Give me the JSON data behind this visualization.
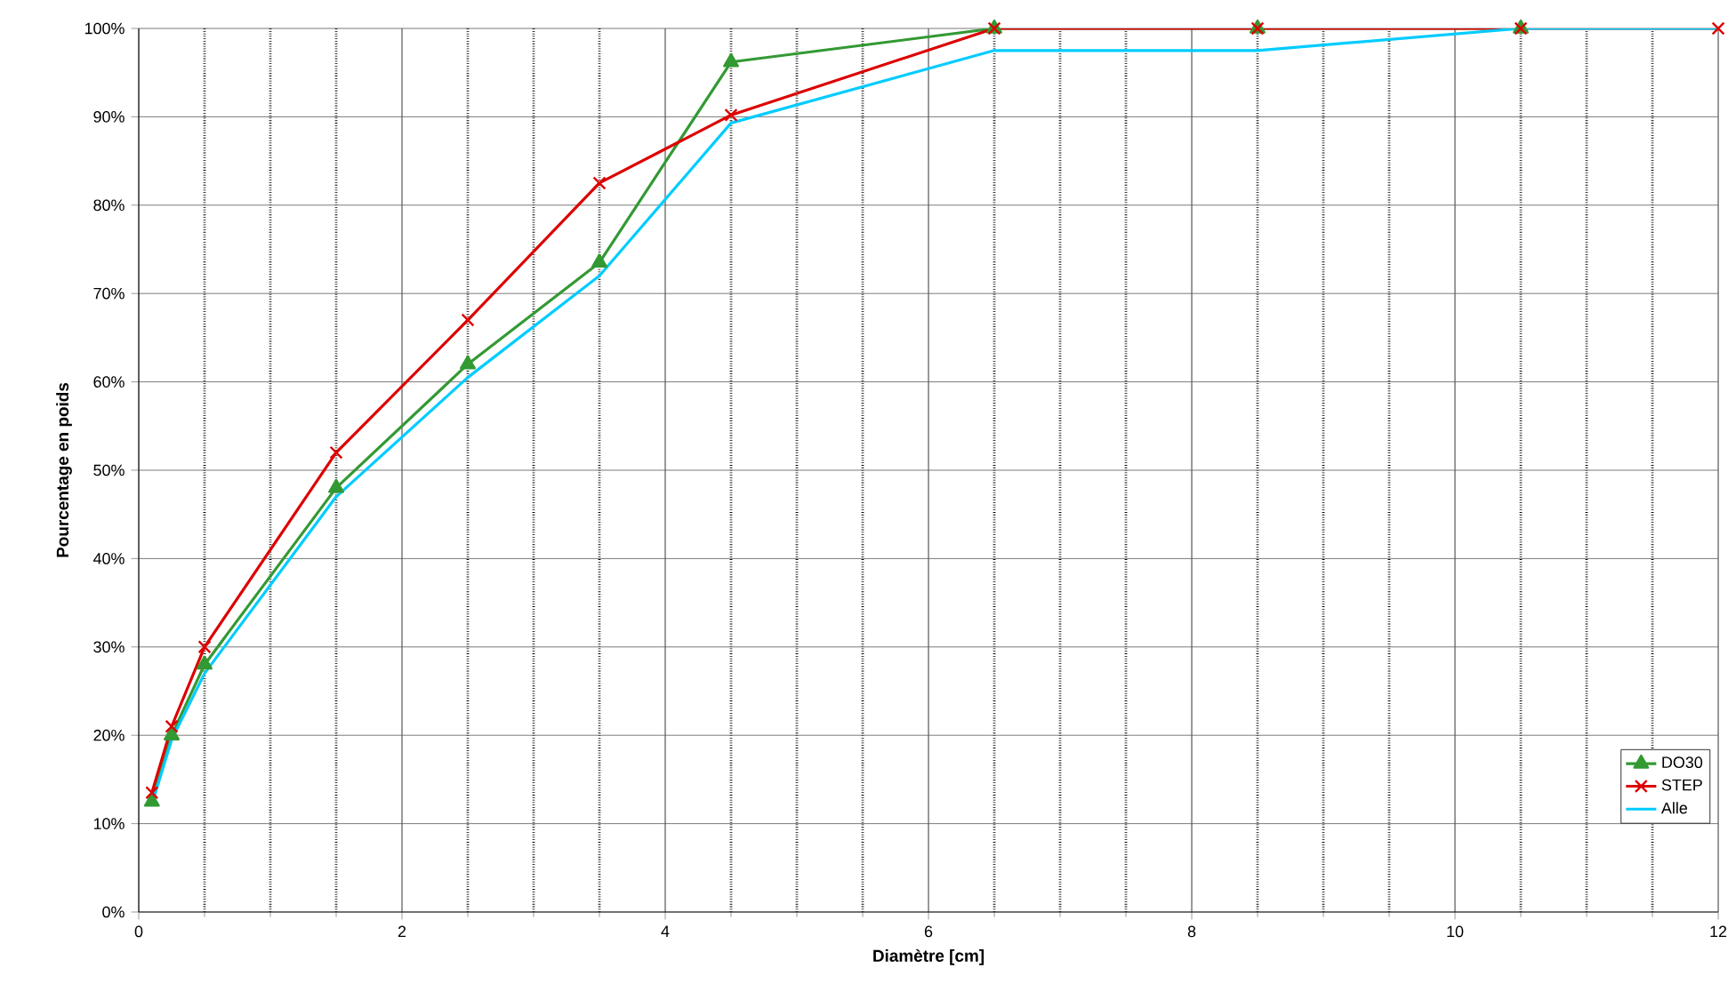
{
  "chart_data": {
    "type": "line",
    "xlabel": "Diamètre [cm]",
    "ylabel": "Pourcentage en poids",
    "series": [
      {
        "name": "DO30",
        "color": "#339933",
        "marker": "triangle",
        "x": [
          0.1,
          0.25,
          0.5,
          1.5,
          2.5,
          3.5,
          4.5,
          6.5,
          8.5,
          10.5
        ],
        "values": [
          12.5,
          20,
          28,
          48,
          62,
          73.5,
          96.2,
          100,
          100,
          100
        ]
      },
      {
        "name": "STEP",
        "color": "#dd0000",
        "marker": "cross",
        "x": [
          0.1,
          0.25,
          0.5,
          1.5,
          2.5,
          3.5,
          4.5,
          6.5,
          8.5,
          10.5,
          12
        ],
        "values": [
          13.5,
          21,
          30,
          52,
          67,
          82.5,
          90.2,
          100,
          100,
          100,
          100
        ]
      },
      {
        "name": "Alle",
        "color": "#00ccff",
        "marker": "none",
        "x": [
          0.1,
          0.25,
          0.5,
          1.5,
          2.5,
          3.5,
          4.5,
          6.5,
          8.5,
          10.5,
          12
        ],
        "values": [
          12.2,
          19.5,
          27,
          47,
          60.5,
          72,
          89.3,
          97.5,
          97.5,
          100,
          100
        ]
      }
    ],
    "xlim": [
      0,
      12
    ],
    "xticks": [
      0,
      2,
      4,
      6,
      8,
      10,
      12
    ],
    "ylim": [
      0,
      100
    ],
    "yticks": [
      {
        "value": 0,
        "label": "0%"
      },
      {
        "value": 10,
        "label": "10%"
      },
      {
        "value": 20,
        "label": "20%"
      },
      {
        "value": 30,
        "label": "30%"
      },
      {
        "value": 40,
        "label": "40%"
      },
      {
        "value": 50,
        "label": "50%"
      },
      {
        "value": 60,
        "label": "60%"
      },
      {
        "value": 70,
        "label": "70%"
      },
      {
        "value": 80,
        "label": "80%"
      },
      {
        "value": 90,
        "label": "90%"
      },
      {
        "value": 100,
        "label": "100%"
      }
    ],
    "grid": true,
    "legend": "bottom right",
    "line_style": "solid"
  }
}
